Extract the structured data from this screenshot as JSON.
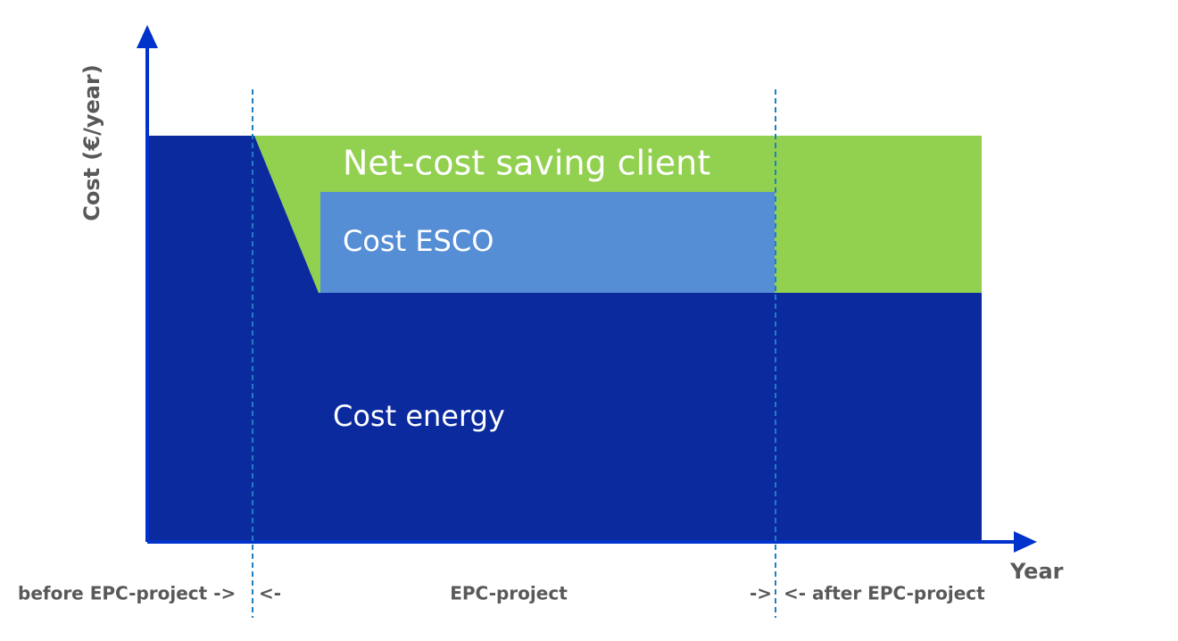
{
  "axes": {
    "y_label": "Cost (€/year)",
    "x_label": "Year"
  },
  "areas": {
    "net_saving": "Net-cost saving client",
    "esco": "Cost ESCO",
    "energy": "Cost energy"
  },
  "phases": {
    "before": "before EPC-project ->",
    "before_end": "<-",
    "project": "EPC-project",
    "project_end": "->",
    "after": "<- after EPC-project"
  }
}
